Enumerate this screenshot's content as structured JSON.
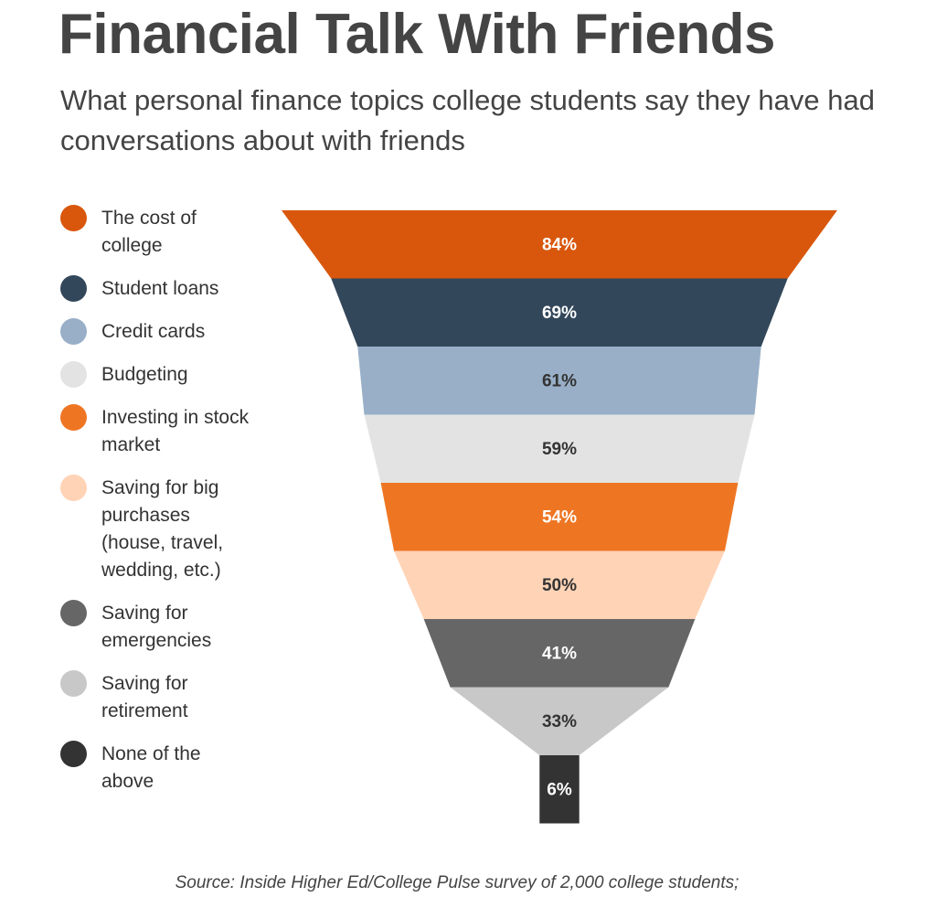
{
  "chart_data": {
    "type": "funnel",
    "title": "Financial Talk With Friends",
    "subtitle": "What personal finance topics college students say they have had conversations about with friends",
    "categories": [
      "The cost of\ncollege",
      "Student loans",
      "Credit cards",
      "Budgeting",
      "Investing in stock\nmarket",
      "Saving for big\npurchases\n(house, travel,\nwedding, etc.)",
      "Saving for\nemergencies",
      "Saving for\nretirement",
      "None of the\nabove"
    ],
    "values": [
      84,
      69,
      61,
      59,
      54,
      50,
      41,
      33,
      6
    ],
    "value_labels": [
      "84%",
      "69%",
      "61%",
      "59%",
      "54%",
      "50%",
      "41%",
      "33%",
      "6%"
    ],
    "colors": [
      "#d9570d",
      "#33475b",
      "#99afc8",
      "#e3e3e3",
      "#ee7623",
      "#ffd3b6",
      "#666666",
      "#c8c8c8",
      "#333333"
    ]
  },
  "source": "Source: Inside Higher Ed/College Pulse survey of 2,000 college students;"
}
